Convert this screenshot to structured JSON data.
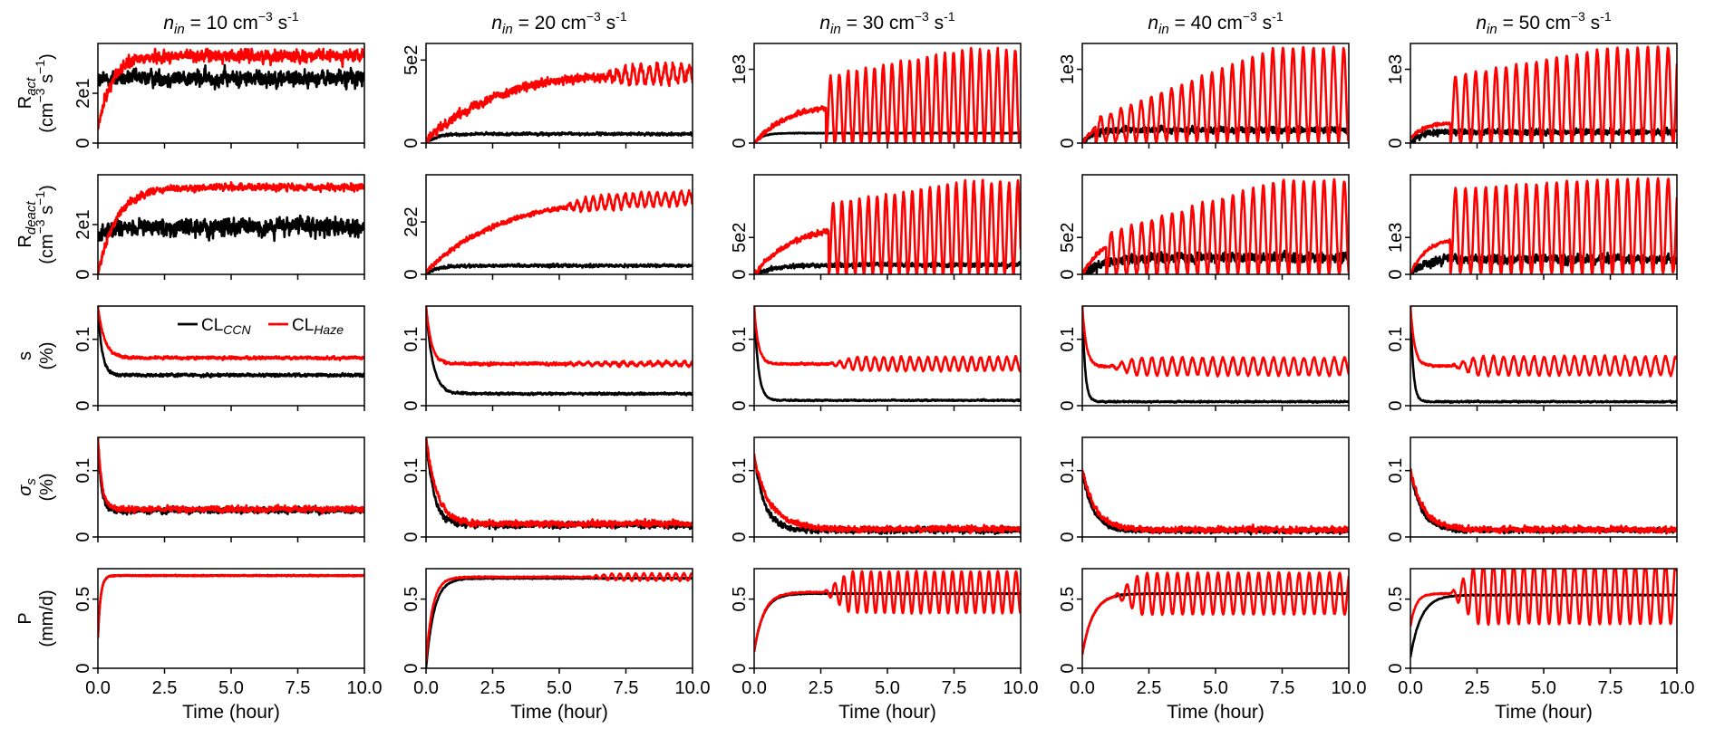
{
  "figure": {
    "col_titles": [
      {
        "sym": "n",
        "sub": "in",
        "rest": " = 10 cm",
        "exp": "−3",
        "rest2": " s",
        "exp2": "-1"
      },
      {
        "sym": "n",
        "sub": "in",
        "rest": " = 20 cm",
        "exp": "−3",
        "rest2": " s",
        "exp2": "-1"
      },
      {
        "sym": "n",
        "sub": "in",
        "rest": " = 30 cm",
        "exp": "−3",
        "rest2": " s",
        "exp2": "-1"
      },
      {
        "sym": "n",
        "sub": "in",
        "rest": " = 40 cm",
        "exp": "−3",
        "rest2": " s",
        "exp2": "-1"
      },
      {
        "sym": "n",
        "sub": "in",
        "rest": " = 50 cm",
        "exp": "−3",
        "rest2": " s",
        "exp2": "-1"
      }
    ],
    "row_labels": [
      {
        "line1_main": "R",
        "line1_sub": "act",
        "line2": "(cm",
        "line2_exp": "−3",
        "line2_rest": " s",
        "line2_exp2": "−1",
        "line2_end": ")"
      },
      {
        "line1_main": "R",
        "line1_sub": "deact",
        "line2": "(cm",
        "line2_exp": "−3",
        "line2_rest": " s",
        "line2_exp2": "−1",
        "line2_end": ")"
      },
      {
        "line1_main": "s",
        "line1_sub": "",
        "line2": "(%)"
      },
      {
        "line1_main": "σ",
        "line1_sub": "s",
        "line2": "(%)"
      },
      {
        "line1_main": "P",
        "line1_sub": "",
        "line2": "(mm/d)"
      }
    ],
    "xlabel": "Time (hour)",
    "xticks": [
      "0.0",
      "2.5",
      "5.0",
      "7.5",
      "10.0"
    ],
    "yticks": [
      [
        [
          "0",
          "2e1"
        ],
        [
          "0",
          "5e2"
        ],
        [
          "0",
          "1e3"
        ],
        [
          "0",
          "1e3"
        ],
        [
          "0",
          "1e3"
        ]
      ],
      [
        [
          "0",
          "2e1"
        ],
        [
          "0",
          "2e2"
        ],
        [
          "0",
          "5e2"
        ],
        [
          "0",
          "5e2"
        ],
        [
          "0",
          "1e3"
        ]
      ],
      [
        [
          "0",
          "0.1"
        ],
        [
          "0",
          "0.1"
        ],
        [
          "0",
          "0.1"
        ],
        [
          "0",
          "0.1"
        ],
        [
          "0",
          "0.1"
        ]
      ],
      [
        [
          "0",
          "0.1"
        ],
        [
          "0",
          "0.1"
        ],
        [
          "0",
          "0.1"
        ],
        [
          "0",
          "0.1"
        ],
        [
          "0",
          "0.1"
        ]
      ],
      [
        [
          "0",
          "0.5"
        ],
        [
          "0",
          "0.5"
        ],
        [
          "0",
          "0.5"
        ],
        [
          "0",
          "0.5"
        ],
        [
          "0",
          "0.5"
        ]
      ]
    ],
    "legend": {
      "ccn_main": "CL",
      "ccn_sub": "CCN",
      "haze_main": "CL",
      "haze_sub": "Haze",
      "ccn_color": "#000000",
      "haze_color": "#ff0000"
    }
  },
  "chart_data": {
    "type": "line",
    "layout": "5x5 grid of subplots",
    "columns_n_in": [
      10,
      20,
      30,
      40,
      50
    ],
    "rows": [
      "R_act",
      "R_deact",
      "s",
      "sigma_s",
      "P"
    ],
    "xlim": [
      0,
      10
    ],
    "series_names": [
      "CL_CCN",
      "CL_Haze"
    ],
    "colors": {
      "CL_CCN": "#000000",
      "CL_Haze": "#ff0000"
    },
    "panels": [
      [
        {
          "ylim": [
            0,
            40
          ],
          "yticks": [
            0,
            20
          ],
          "ccn": {
            "initial": 25,
            "steady": 26,
            "rise": 0.3,
            "noise": 3.0,
            "osc_amp": 0,
            "osc_start": 10,
            "period": 0.45
          },
          "haze": {
            "initial": 5,
            "steady": 35,
            "rise": 0.5,
            "noise": 2.2,
            "osc_amp": 0,
            "osc_start": 10,
            "period": 0.45
          }
        },
        {
          "ylim": [
            0,
            600
          ],
          "yticks": [
            0,
            500
          ],
          "ccn": {
            "initial": 0,
            "steady": 55,
            "rise": 0.4,
            "noise": 7,
            "osc_amp": 0,
            "osc_start": 10,
            "period": 0.45
          },
          "haze": {
            "initial": 10,
            "steady": 430,
            "rise": 2.5,
            "noise": 25,
            "osc_amp": 50,
            "osc_start": 6.5,
            "period": 0.3
          }
        },
        {
          "ylim": [
            0,
            1350
          ],
          "yticks": [
            0,
            1000
          ],
          "ccn": {
            "initial": 0,
            "steady": 135,
            "rise": 0.3,
            "noise": 4,
            "osc_amp": 0,
            "osc_start": 10,
            "period": 0.4
          },
          "haze": {
            "initial": 0,
            "steady": 550,
            "rise": 1.3,
            "noise": 30,
            "osc_amp": 0,
            "osc_start": 10,
            "period": 0.4,
            "spike_start": 2.7,
            "spike_peak_start": 900,
            "spike_peak_end": 1260,
            "spike_base": 0,
            "spike_period": 0.33
          }
        },
        {
          "ylim": [
            0,
            1350
          ],
          "yticks": [
            0,
            1000
          ],
          "ccn": {
            "initial": 0,
            "steady": 180,
            "rise": 0.4,
            "noise": 40,
            "osc_amp": 0,
            "osc_start": 10,
            "period": 0.4
          },
          "haze": {
            "initial": 0,
            "steady": 350,
            "rise": 0.6,
            "noise": 20,
            "osc_amp": 0,
            "osc_start": 10,
            "period": 0.4,
            "spike_start": 0.5,
            "spike_peak_start": 330,
            "spike_peak_end": 1290,
            "spike_base": 20,
            "spike_period": 0.38
          }
        },
        {
          "ylim": [
            0,
            1350
          ],
          "yticks": [
            0,
            1000
          ],
          "ccn": {
            "initial": 0,
            "steady": 150,
            "rise": 0.3,
            "noise": 35,
            "osc_amp": 0,
            "osc_start": 10,
            "period": 0.4
          },
          "haze": {
            "initial": 60,
            "steady": 280,
            "rise": 0.5,
            "noise": 20,
            "osc_amp": 0,
            "osc_start": 10,
            "period": 0.4,
            "spike_start": 1.5,
            "spike_peak_start": 900,
            "spike_peak_end": 1290,
            "spike_base": 0,
            "spike_period": 0.38
          }
        }
      ],
      [
        {
          "ylim": [
            0,
            40
          ],
          "yticks": [
            0,
            20
          ],
          "ccn": {
            "initial": 15,
            "steady": 19,
            "rise": 0.3,
            "noise": 3.2,
            "osc_amp": 0,
            "osc_start": 10,
            "period": 0.45
          },
          "haze": {
            "initial": 0,
            "steady": 35,
            "rise": 0.7,
            "noise": 1.3,
            "osc_amp": 0,
            "osc_start": 10,
            "period": 0.45
          }
        },
        {
          "ylim": [
            0,
            380
          ],
          "yticks": [
            0,
            200
          ],
          "ccn": {
            "initial": 0,
            "steady": 33,
            "rise": 0.4,
            "noise": 5,
            "osc_amp": 0,
            "osc_start": 10,
            "period": 0.45
          },
          "haze": {
            "initial": 10,
            "steady": 300,
            "rise": 2.8,
            "noise": 8,
            "osc_amp": 25,
            "osc_start": 5,
            "period": 0.3
          }
        },
        {
          "ylim": [
            0,
            1350
          ],
          "yticks": [
            0,
            500
          ],
          "ccn": {
            "initial": 0,
            "steady": 130,
            "rise": 0.8,
            "noise": 25,
            "osc_amp": 0,
            "osc_start": 10,
            "period": 0.4
          },
          "haze": {
            "initial": 0,
            "steady": 700,
            "rise": 1.5,
            "noise": 30,
            "osc_amp": 0,
            "osc_start": 10,
            "period": 0.4,
            "spike_start": 2.8,
            "spike_peak_start": 950,
            "spike_peak_end": 1250,
            "spike_base": 0,
            "spike_period": 0.33
          }
        },
        {
          "ylim": [
            0,
            1350
          ],
          "yticks": [
            0,
            500
          ],
          "ccn": {
            "initial": 0,
            "steady": 230,
            "rise": 0.8,
            "noise": 60,
            "osc_amp": 0,
            "osc_start": 10,
            "period": 0.4
          },
          "haze": {
            "initial": 0,
            "steady": 550,
            "rise": 0.8,
            "noise": 25,
            "osc_amp": 0,
            "osc_start": 10,
            "period": 0.4,
            "spike_start": 0.9,
            "spike_peak_start": 550,
            "spike_peak_end": 1270,
            "spike_base": 0,
            "spike_period": 0.38
          }
        },
        {
          "ylim": [
            0,
            2700
          ],
          "yticks": [
            0,
            1000
          ],
          "ccn": {
            "initial": 0,
            "steady": 420,
            "rise": 0.5,
            "noise": 110,
            "osc_amp": 0,
            "osc_start": 10,
            "period": 0.4
          },
          "haze": {
            "initial": 0,
            "steady": 1000,
            "rise": 0.6,
            "noise": 40,
            "osc_amp": 0,
            "osc_start": 10,
            "period": 0.4,
            "spike_start": 1.5,
            "spike_peak_start": 2300,
            "spike_peak_end": 2580,
            "spike_base": 30,
            "spike_period": 0.38
          }
        }
      ],
      [
        {
          "ylim": [
            0,
            0.15
          ],
          "yticks": [
            0,
            0.1
          ],
          "ccn": {
            "initial": 0.15,
            "steady": 0.046,
            "rise": 0.15,
            "noise": 0.002,
            "osc_amp": 0,
            "osc_start": 10,
            "period": 0.45
          },
          "haze": {
            "initial": 0.15,
            "steady": 0.072,
            "rise": 0.25,
            "noise": 0.002,
            "osc_amp": 0,
            "osc_start": 10,
            "period": 0.45
          }
        },
        {
          "ylim": [
            0,
            0.15
          ],
          "yticks": [
            0,
            0.1
          ],
          "ccn": {
            "initial": 0.15,
            "steady": 0.018,
            "rise": 0.25,
            "noise": 0.0015,
            "osc_amp": 0,
            "osc_start": 10,
            "period": 0.45
          },
          "haze": {
            "initial": 0.15,
            "steady": 0.063,
            "rise": 0.2,
            "noise": 0.002,
            "osc_amp": 0.0025,
            "osc_start": 5,
            "period": 0.33
          }
        },
        {
          "ylim": [
            0,
            0.15
          ],
          "yticks": [
            0,
            0.1
          ],
          "ccn": {
            "initial": 0.15,
            "steady": 0.008,
            "rise": 0.15,
            "noise": 0.001,
            "osc_amp": 0,
            "osc_start": 10,
            "period": 0.45
          },
          "haze": {
            "initial": 0.15,
            "steady": 0.063,
            "rise": 0.15,
            "noise": 0.0015,
            "osc_amp": 0.01,
            "osc_start": 2.8,
            "period": 0.33
          }
        },
        {
          "ylim": [
            0,
            0.15
          ],
          "yticks": [
            0,
            0.1
          ],
          "ccn": {
            "initial": 0.15,
            "steady": 0.006,
            "rise": 0.1,
            "noise": 0.001,
            "osc_amp": 0,
            "osc_start": 10,
            "period": 0.45
          },
          "haze": {
            "initial": 0.15,
            "steady": 0.059,
            "rise": 0.15,
            "noise": 0.0015,
            "osc_amp": 0.013,
            "osc_start": 1.0,
            "period": 0.38
          }
        },
        {
          "ylim": [
            0,
            0.15
          ],
          "yticks": [
            0,
            0.1
          ],
          "ccn": {
            "initial": 0.15,
            "steady": 0.006,
            "rise": 0.1,
            "noise": 0.001,
            "osc_amp": 0,
            "osc_start": 10,
            "period": 0.45
          },
          "haze": {
            "initial": 0.15,
            "steady": 0.06,
            "rise": 0.15,
            "noise": 0.0015,
            "osc_amp": 0.014,
            "osc_start": 1.5,
            "period": 0.38
          }
        }
      ],
      [
        {
          "ylim": [
            0,
            0.15
          ],
          "yticks": [
            0,
            0.1
          ],
          "ccn": {
            "initial": 0.15,
            "steady": 0.04,
            "rise": 0.12,
            "noise": 0.004,
            "osc_amp": 0,
            "osc_start": 10,
            "period": 0.45
          },
          "haze": {
            "initial": 0.15,
            "steady": 0.042,
            "rise": 0.15,
            "noise": 0.004,
            "osc_amp": 0,
            "osc_start": 10,
            "period": 0.45
          }
        },
        {
          "ylim": [
            0,
            0.15
          ],
          "yticks": [
            0,
            0.1
          ],
          "ccn": {
            "initial": 0.15,
            "steady": 0.018,
            "rise": 0.3,
            "noise": 0.004,
            "osc_amp": 0,
            "osc_start": 10,
            "period": 0.45
          },
          "haze": {
            "initial": 0.15,
            "steady": 0.02,
            "rise": 0.4,
            "noise": 0.004,
            "osc_amp": 0,
            "osc_start": 10,
            "period": 0.45
          }
        },
        {
          "ylim": [
            0,
            0.15
          ],
          "yticks": [
            0,
            0.1
          ],
          "ccn": {
            "initial": 0.12,
            "steady": 0.01,
            "rise": 0.4,
            "noise": 0.004,
            "osc_amp": 0,
            "osc_start": 10,
            "period": 0.45
          },
          "haze": {
            "initial": 0.12,
            "steady": 0.012,
            "rise": 0.6,
            "noise": 0.004,
            "osc_amp": 0,
            "osc_start": 10,
            "period": 0.45
          }
        },
        {
          "ylim": [
            0,
            0.15
          ],
          "yticks": [
            0,
            0.1
          ],
          "ccn": {
            "initial": 0.1,
            "steady": 0.009,
            "rise": 0.4,
            "noise": 0.003,
            "osc_amp": 0,
            "osc_start": 10,
            "period": 0.45
          },
          "haze": {
            "initial": 0.1,
            "steady": 0.011,
            "rise": 0.5,
            "noise": 0.004,
            "osc_amp": 0,
            "osc_start": 10,
            "period": 0.45
          }
        },
        {
          "ylim": [
            0,
            0.15
          ],
          "yticks": [
            0,
            0.1
          ],
          "ccn": {
            "initial": 0.1,
            "steady": 0.01,
            "rise": 0.4,
            "noise": 0.003,
            "osc_amp": 0,
            "osc_start": 10,
            "period": 0.45
          },
          "haze": {
            "initial": 0.1,
            "steady": 0.011,
            "rise": 0.5,
            "noise": 0.004,
            "osc_amp": 0,
            "osc_start": 10,
            "period": 0.45
          }
        }
      ],
      [
        {
          "ylim": [
            0,
            0.72
          ],
          "yticks": [
            0,
            0.5
          ],
          "ccn": {
            "initial": 0.22,
            "steady": 0.67,
            "rise": 0.1,
            "noise": 0.003,
            "osc_amp": 0,
            "osc_start": 10,
            "period": 0.45
          },
          "haze": {
            "initial": 0.22,
            "steady": 0.67,
            "rise": 0.1,
            "noise": 0.004,
            "osc_amp": 0,
            "osc_start": 10,
            "period": 0.45
          }
        },
        {
          "ylim": [
            0,
            0.72
          ],
          "yticks": [
            0,
            0.5
          ],
          "ccn": {
            "initial": 0.0,
            "steady": 0.65,
            "rise": 0.3,
            "noise": 0.003,
            "osc_amp": 0,
            "osc_start": 10,
            "period": 0.45
          },
          "haze": {
            "initial": 0.05,
            "steady": 0.66,
            "rise": 0.25,
            "noise": 0.004,
            "osc_amp": 0.025,
            "osc_start": 6,
            "period": 0.3
          }
        },
        {
          "ylim": [
            0,
            0.72
          ],
          "yticks": [
            0,
            0.5
          ],
          "ccn": {
            "initial": 0.12,
            "steady": 0.54,
            "rise": 0.35,
            "noise": 0.003,
            "osc_amp": 0,
            "osc_start": 10,
            "period": 0.45
          },
          "haze": {
            "initial": 0.12,
            "steady": 0.55,
            "rise": 0.35,
            "noise": 0.004,
            "osc_amp": 0.15,
            "osc_start": 2.6,
            "period": 0.34
          }
        },
        {
          "ylim": [
            0,
            0.72
          ],
          "yticks": [
            0,
            0.5
          ],
          "ccn": {
            "initial": 0.1,
            "steady": 0.54,
            "rise": 0.4,
            "noise": 0.003,
            "osc_amp": 0,
            "osc_start": 10,
            "period": 0.45
          },
          "haze": {
            "initial": 0.1,
            "steady": 0.54,
            "rise": 0.4,
            "noise": 0.004,
            "osc_amp": 0.15,
            "osc_start": 1.2,
            "period": 0.38
          }
        },
        {
          "ylim": [
            0,
            0.72
          ],
          "yticks": [
            0,
            0.5
          ],
          "ccn": {
            "initial": 0.08,
            "steady": 0.53,
            "rise": 0.4,
            "noise": 0.003,
            "osc_amp": 0,
            "osc_start": 10,
            "period": 0.45
          },
          "haze": {
            "initial": 0.3,
            "steady": 0.54,
            "rise": 0.2,
            "noise": 0.004,
            "osc_amp": 0.22,
            "osc_start": 1.5,
            "period": 0.38
          }
        }
      ]
    ]
  }
}
